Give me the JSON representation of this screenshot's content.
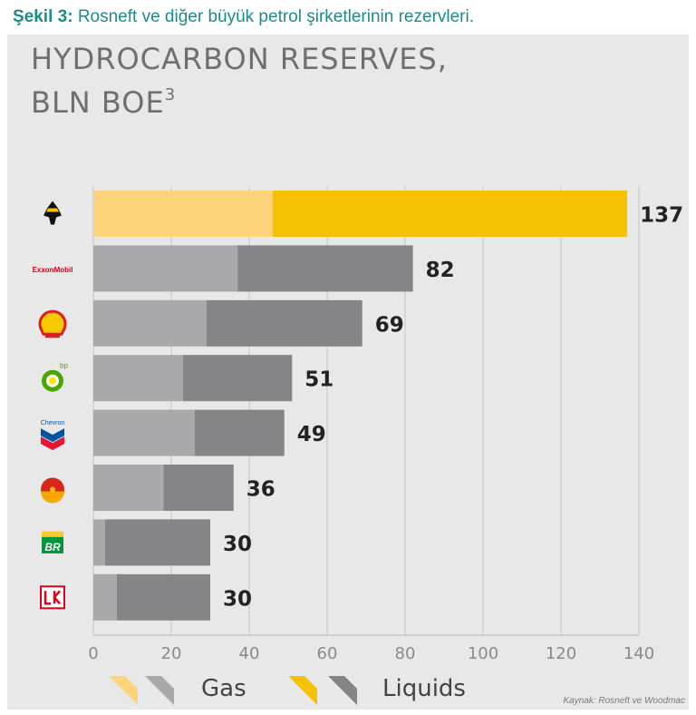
{
  "caption": {
    "prefix": "Şekil 3:",
    "text": " Rosneft ve diğer büyük petrol şirketlerinin rezervleri."
  },
  "chart_title_line1": "HYDROCARBON RESERVES,",
  "chart_title_line2": "BLN BOE",
  "chart_title_sup": "3",
  "source": "Kaynak: Rosneft ve Woodmac",
  "colors": {
    "highlight_gas": "#fdd47a",
    "highlight_liquids": "#f6c100",
    "gas": "#a9a9ab",
    "liquids": "#858588",
    "panel": "#e8e8e8"
  },
  "chart_data": {
    "type": "bar",
    "orientation": "horizontal",
    "stacked": true,
    "categories": [
      "Rosneft",
      "ExxonMobil",
      "Shell",
      "BP",
      "Chevron",
      "PetroChina",
      "Petrobras",
      "Lukoil"
    ],
    "series": [
      {
        "name": "Gas",
        "values": [
          46,
          37,
          29,
          23,
          26,
          18,
          3,
          6
        ]
      },
      {
        "name": "Liquids",
        "values": [
          91,
          45,
          40,
          28,
          23,
          18,
          27,
          24
        ]
      }
    ],
    "totals": [
      137,
      82,
      69,
      51,
      49,
      36,
      30,
      30
    ],
    "xlim": [
      0,
      140
    ],
    "xticks": [
      0,
      20,
      40,
      60,
      80,
      100,
      120,
      140
    ],
    "grid": true,
    "legend_position": "bottom"
  },
  "logos": [
    {
      "name": "rosneft-logo-icon"
    },
    {
      "name": "exxonmobil-logo-icon",
      "text": "ExxonMobil"
    },
    {
      "name": "shell-logo-icon"
    },
    {
      "name": "bp-logo-icon",
      "text": "bp"
    },
    {
      "name": "chevron-logo-icon",
      "text": "Chevron"
    },
    {
      "name": "petrochina-logo-icon"
    },
    {
      "name": "petrobras-logo-icon",
      "text": "BR"
    },
    {
      "name": "lukoil-logo-icon"
    }
  ]
}
